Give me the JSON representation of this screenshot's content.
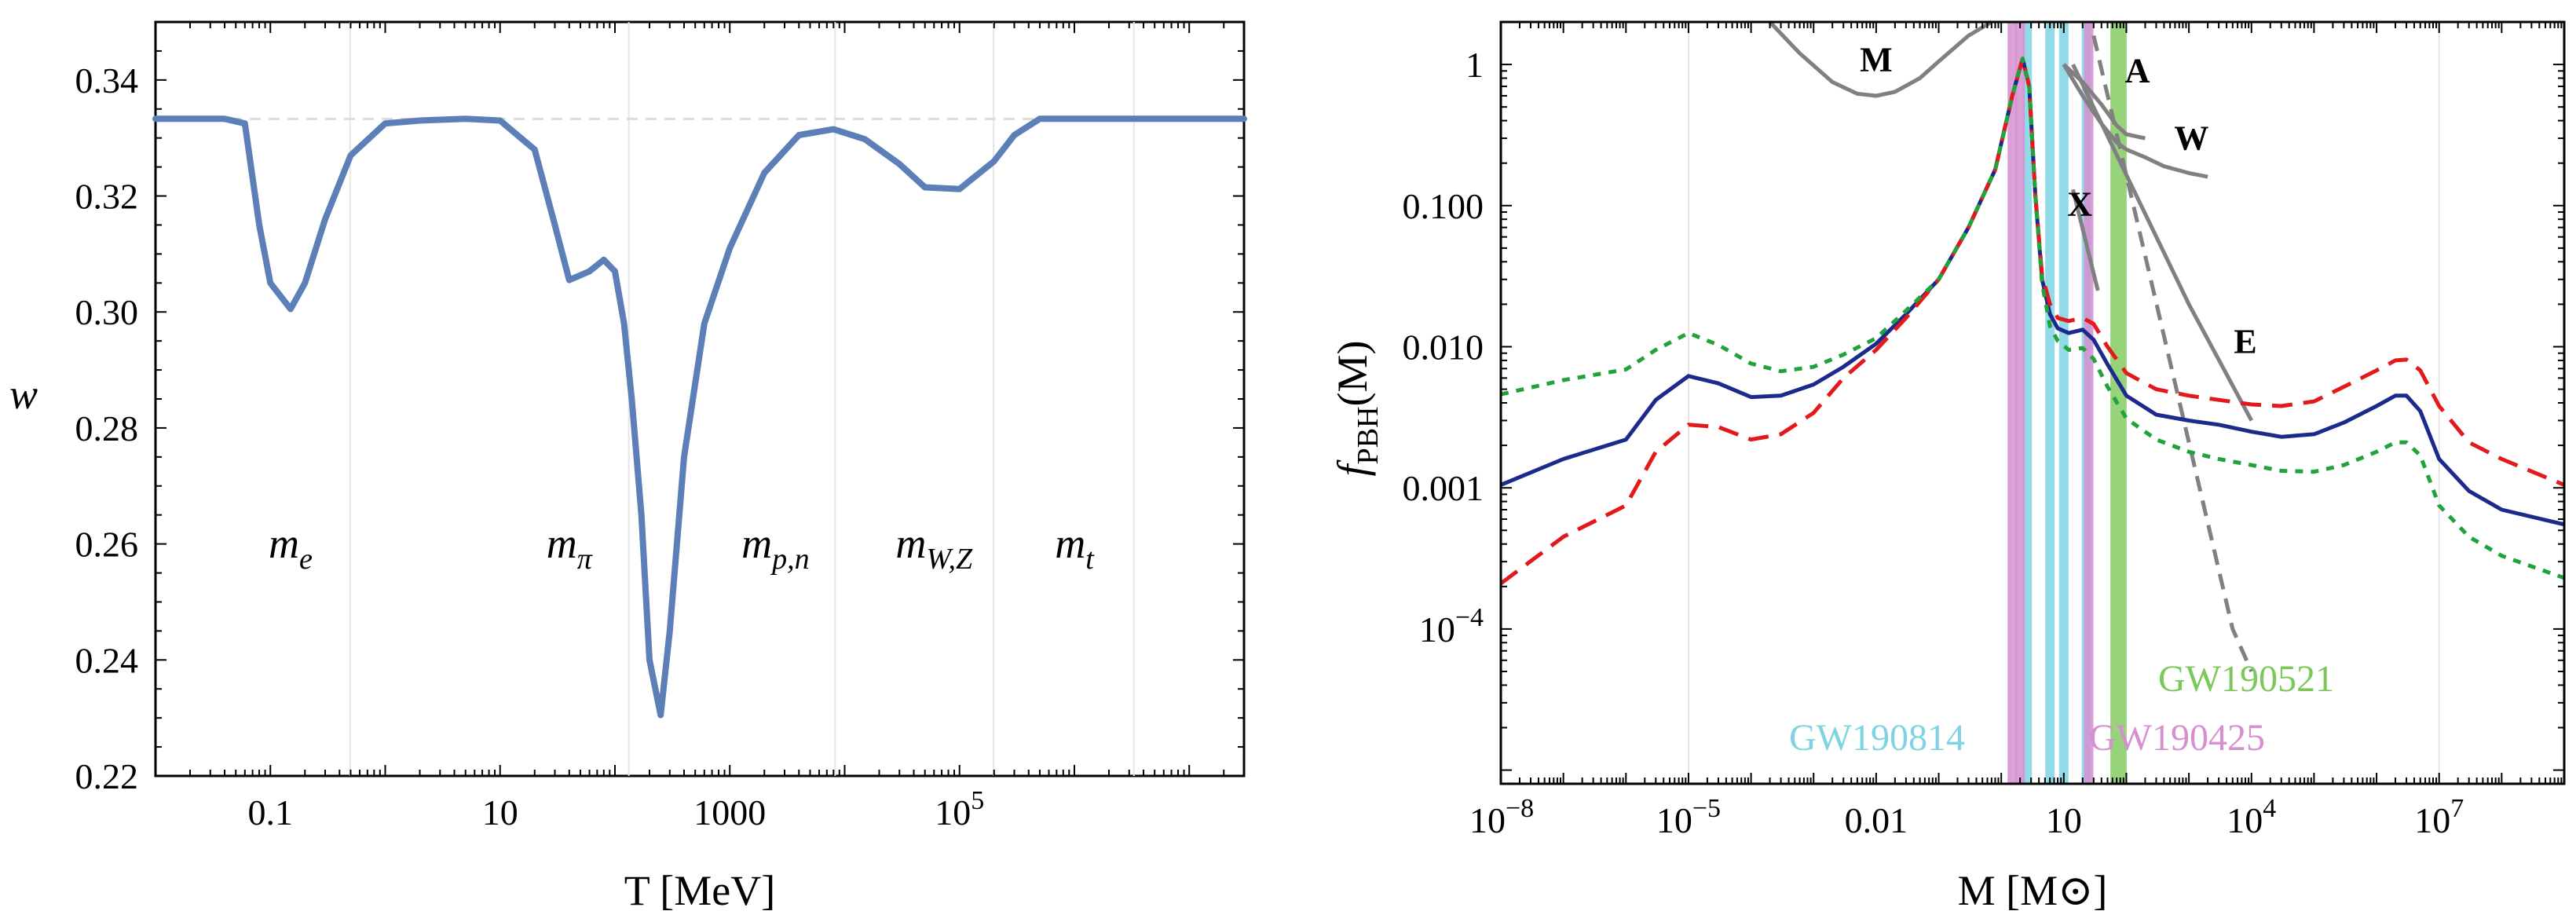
{
  "chart_data": [
    {
      "type": "line",
      "title": "",
      "xlabel": "T [MeV]",
      "ylabel": "w",
      "xscale": "log",
      "xlim": [
        0.01,
        30000000.0
      ],
      "ylim": [
        0.22,
        0.35
      ],
      "x_tick_labels": [
        "0.1",
        "10",
        "1000",
        "10^5"
      ],
      "y_tick_labels": [
        "0.22",
        "0.24",
        "0.26",
        "0.28",
        "0.30",
        "0.32",
        "0.34"
      ],
      "reference_line": {
        "y": 0.3333,
        "style": "dashed",
        "color": "#dddddd"
      },
      "particle_labels": [
        {
          "base": "m",
          "sub": "e",
          "T": 0.15
        },
        {
          "base": "m",
          "sub": "π",
          "T": 40
        },
        {
          "base": "m",
          "sub": "p,n",
          "T": 2500
        },
        {
          "base": "m",
          "sub": "W,Z",
          "T": 60000
        },
        {
          "base": "m",
          "sub": "t",
          "T": 1000000
        }
      ],
      "series": [
        {
          "color": "#5b7fb6",
          "x": [
            0.01,
            0.04,
            0.06,
            0.08,
            0.1,
            0.15,
            0.2,
            0.3,
            0.5,
            1,
            2,
            5,
            10,
            20,
            30,
            40,
            60,
            80,
            100,
            120,
            140,
            170,
            200,
            250,
            300,
            400,
            600,
            1000,
            2000,
            4000,
            8000,
            15000,
            30000,
            50000,
            100000,
            200000,
            300000,
            500000,
            1000000,
            3000000,
            30000000
          ],
          "y": [
            0.3333,
            0.3333,
            0.3325,
            0.315,
            0.305,
            0.3005,
            0.305,
            0.316,
            0.327,
            0.3325,
            0.333,
            0.3333,
            0.333,
            0.328,
            0.315,
            0.3055,
            0.307,
            0.309,
            0.307,
            0.298,
            0.285,
            0.265,
            0.24,
            0.2305,
            0.245,
            0.275,
            0.298,
            0.311,
            0.324,
            0.3305,
            0.3315,
            0.3298,
            0.3255,
            0.3215,
            0.3212,
            0.326,
            0.3305,
            0.3333,
            0.3333,
            0.3333,
            0.3333
          ]
        }
      ]
    },
    {
      "type": "line",
      "title": "",
      "xlabel": "M [M⊙]",
      "ylabel": "fPBH(M)",
      "xscale": "log",
      "yscale": "log",
      "xlim": [
        1e-08,
        1000000000.0
      ],
      "ylim": [
        8e-06,
        2
      ],
      "x_tick_labels": [
        "10^-8",
        "10^-5",
        "0.01",
        "10",
        "10^4",
        "10^7"
      ],
      "y_tick_labels": [
        "10^-4",
        "0.001",
        "0.010",
        "0.100",
        "1"
      ],
      "series": [
        {
          "style": "solid",
          "color": "#1c2a8c",
          "x": [
            1e-08,
            1e-07,
            1e-06,
            3e-06,
            1e-05,
            3e-05,
            0.0001,
            0.0003,
            0.001,
            0.003,
            0.01,
            0.03,
            0.1,
            0.3,
            0.8,
            1.5,
            2.2,
            2.8,
            3.5,
            4.5,
            6,
            8,
            12,
            20,
            30,
            50,
            100,
            300,
            1000,
            3000,
            10000,
            30000,
            100000,
            300000,
            1000000,
            2000000,
            3000000,
            5000000,
            10000000,
            30000000,
            100000000,
            1000000000
          ],
          "y": [
            0.00105,
            0.0016,
            0.0022,
            0.0042,
            0.0062,
            0.0055,
            0.0044,
            0.0045,
            0.0054,
            0.0072,
            0.0105,
            0.017,
            0.03,
            0.07,
            0.18,
            0.6,
            1.1,
            0.7,
            0.12,
            0.03,
            0.017,
            0.0135,
            0.0125,
            0.0132,
            0.0112,
            0.0075,
            0.0045,
            0.0033,
            0.003,
            0.0028,
            0.0025,
            0.0023,
            0.0024,
            0.0029,
            0.0038,
            0.0045,
            0.0045,
            0.0035,
            0.0016,
            0.00095,
            0.0007,
            0.00055
          ]
        },
        {
          "style": "dashed",
          "color": "#e31a1c",
          "x": [
            1e-08,
            1e-07,
            1e-06,
            3e-06,
            1e-05,
            3e-05,
            0.0001,
            0.0003,
            0.001,
            0.003,
            0.01,
            0.03,
            0.1,
            0.3,
            0.8,
            1.5,
            2.2,
            2.8,
            3.5,
            4.5,
            6,
            8,
            12,
            20,
            30,
            50,
            100,
            300,
            1000,
            3000,
            10000,
            30000,
            100000,
            300000,
            1000000,
            2000000,
            3000000,
            5000000,
            10000000,
            30000000,
            100000000,
            1000000000
          ],
          "y": [
            0.00021,
            0.00045,
            0.00075,
            0.0018,
            0.0028,
            0.0027,
            0.0022,
            0.0024,
            0.0034,
            0.006,
            0.0095,
            0.016,
            0.03,
            0.07,
            0.18,
            0.6,
            1.1,
            0.7,
            0.12,
            0.032,
            0.02,
            0.016,
            0.0152,
            0.016,
            0.0145,
            0.01,
            0.0065,
            0.005,
            0.0045,
            0.0042,
            0.0039,
            0.0038,
            0.0041,
            0.0052,
            0.0068,
            0.008,
            0.0081,
            0.0068,
            0.0038,
            0.0021,
            0.0016,
            0.00105
          ]
        },
        {
          "style": "dotted",
          "color": "#1fa33a",
          "x": [
            1e-08,
            1e-07,
            1e-06,
            3e-06,
            1e-05,
            3e-05,
            0.0001,
            0.0003,
            0.001,
            0.003,
            0.01,
            0.03,
            0.1,
            0.3,
            0.8,
            1.5,
            2.2,
            2.8,
            3.5,
            4.5,
            6,
            8,
            12,
            20,
            30,
            50,
            100,
            300,
            1000,
            3000,
            10000,
            30000,
            100000,
            300000,
            1000000,
            2000000,
            3000000,
            5000000,
            10000000,
            30000000,
            100000000,
            1000000000
          ],
          "y": [
            0.0046,
            0.0058,
            0.0069,
            0.0095,
            0.0125,
            0.0103,
            0.0076,
            0.0067,
            0.0072,
            0.0088,
            0.0115,
            0.018,
            0.03,
            0.07,
            0.18,
            0.6,
            1.1,
            0.7,
            0.12,
            0.028,
            0.014,
            0.011,
            0.0095,
            0.0098,
            0.0082,
            0.0052,
            0.0031,
            0.0022,
            0.0018,
            0.0016,
            0.00145,
            0.00132,
            0.0013,
            0.00145,
            0.0018,
            0.0021,
            0.0021,
            0.0017,
            0.00075,
            0.00045,
            0.00033,
            0.00023
          ]
        }
      ],
      "bounds": [
        {
          "label": "M",
          "x": [
            0.0002,
            0.0006,
            0.002,
            0.005,
            0.01,
            0.02,
            0.05,
            0.1,
            0.3,
            0.7
          ],
          "y": [
            2,
            1.2,
            0.75,
            0.62,
            0.6,
            0.64,
            0.8,
            1.05,
            1.6,
            2
          ]
        },
        {
          "label": "A",
          "x": [
            10,
            20,
            40,
            70,
            100,
            200
          ],
          "y": [
            1.0,
            0.75,
            0.52,
            0.37,
            0.32,
            0.3
          ]
        },
        {
          "label": "W",
          "x": [
            10,
            20,
            40,
            70,
            100,
            200,
            400,
            1000,
            2000
          ],
          "y": [
            1.0,
            0.6,
            0.38,
            0.28,
            0.25,
            0.22,
            0.19,
            0.17,
            0.16
          ]
        },
        {
          "label": "X",
          "x": [
            14,
            35
          ],
          "y": [
            0.13,
            0.025
          ]
        },
        {
          "label": "E",
          "x": [
            14,
            1000,
            10000
          ],
          "y": [
            1.0,
            0.02,
            0.003
          ]
        },
        {
          "label": "",
          "style": "dashed",
          "x": [
            30,
            5000,
            10000
          ],
          "y": [
            1.6,
            0.0001,
            5e-05
          ]
        }
      ],
      "gw_events": [
        {
          "label": "GW190814",
          "color": "#7fd3e3",
          "mass_lines": [
            2.6,
            6,
            10,
            23
          ]
        },
        {
          "label": "GW190425",
          "color": "#d68fcf",
          "mass_lines": [
            1.5,
            2,
            25
          ]
        },
        {
          "label": "GW190521",
          "color": "#7cc85a",
          "mass_band": [
            66,
            85
          ]
        }
      ]
    }
  ]
}
